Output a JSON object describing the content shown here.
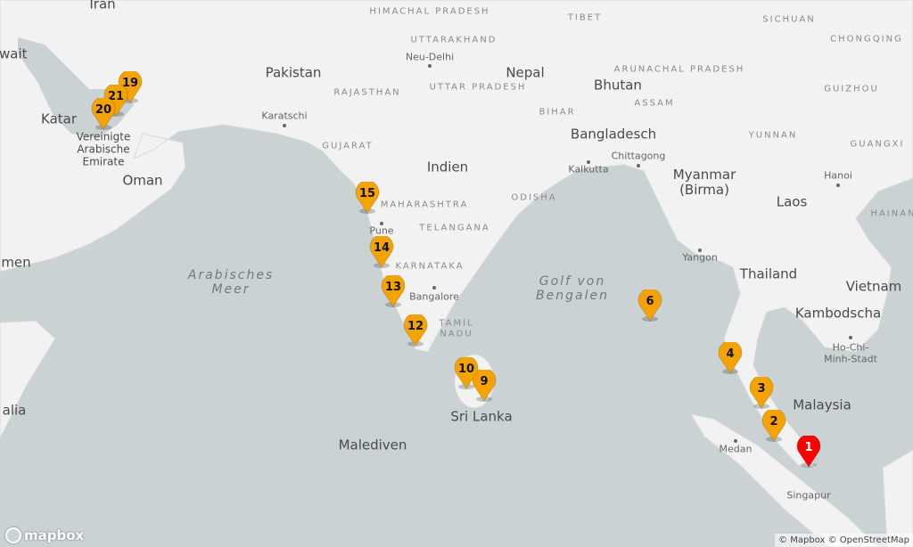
{
  "map": {
    "colors": {
      "water": "#cad2d3",
      "land": "#f2f2f2",
      "marker": "#f5a300",
      "marker_active": "#ff0000"
    },
    "labels": {
      "countries": [
        "Iran",
        "Pakistan",
        "Indien",
        "Nepal",
        "Bhutan",
        "Bangladesch",
        "Myanmar (Birma)",
        "Laos",
        "Thailand",
        "Vietnam",
        "Kambodscha",
        "Oman",
        "Katar",
        "Vereinigte Arabische Emirate",
        "Sri Lanka",
        "Malaysia",
        "Malediven",
        "men",
        "alia",
        "uwait"
      ],
      "states": [
        "HIMACHAL PRADESH",
        "UTTARAKHAND",
        "UTTAR PRADESH",
        "RAJASTHAN",
        "GUJARAT",
        "MAHARASHTRA",
        "TELANGANA",
        "KARNATAKA",
        "TAMIL NADU",
        "ODISHA",
        "BIHAR",
        "ASSAM",
        "ARUNACHAL PRADESH",
        "TIBET",
        "SICHUAN",
        "CHONGQING",
        "GUIZHOU",
        "YUNNAN",
        "GUANGXI",
        "HAINAN"
      ],
      "cities": [
        "Neu-Delhi",
        "Karatschi",
        "Pune",
        "Bangalore",
        "Kalkutta",
        "Chittagong",
        "Yangon",
        "Hanoi",
        "Ho-Chi-Minh-Stadt",
        "Medan",
        "Singapur"
      ],
      "seas": [
        "Arabisches Meer",
        "Golf von Bengalen"
      ]
    },
    "markers": [
      {
        "label": "1",
        "active": true
      },
      {
        "label": "2"
      },
      {
        "label": "3"
      },
      {
        "label": "4"
      },
      {
        "label": "6"
      },
      {
        "label": "9"
      },
      {
        "label": "10"
      },
      {
        "label": "12"
      },
      {
        "label": "13"
      },
      {
        "label": "14"
      },
      {
        "label": "15"
      },
      {
        "label": "19"
      },
      {
        "label": "21"
      },
      {
        "label": "20"
      }
    ]
  },
  "logo": "mapbox",
  "attribution": "© Mapbox © OpenStreetMap"
}
